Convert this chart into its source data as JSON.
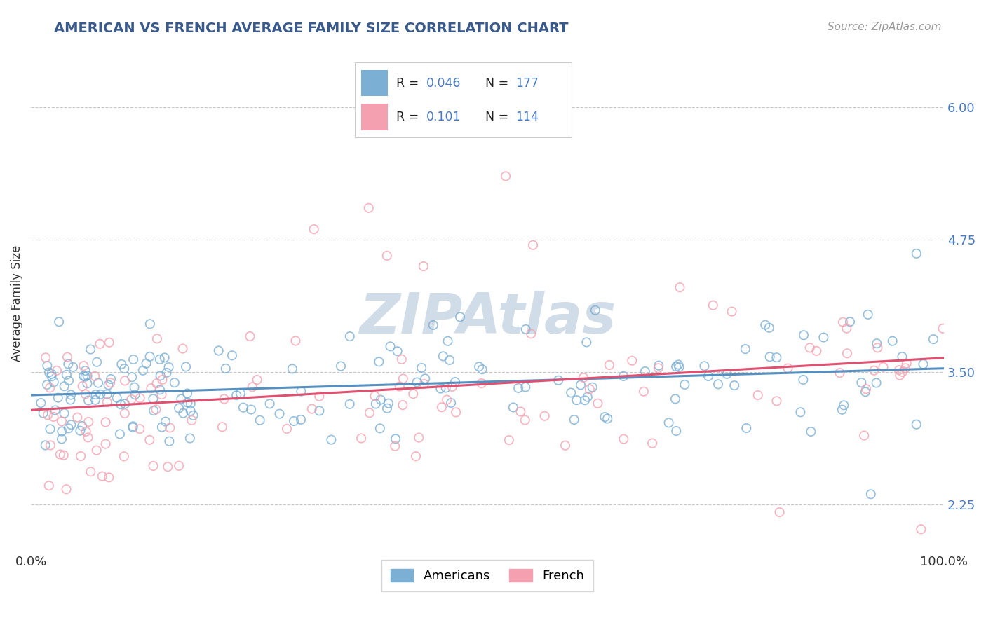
{
  "title": "AMERICAN VS FRENCH AVERAGE FAMILY SIZE CORRELATION CHART",
  "source": "Source: ZipAtlas.com",
  "ylabel": "Average Family Size",
  "xlim": [
    0.0,
    1.0
  ],
  "ylim": [
    1.8,
    6.5
  ],
  "yticks": [
    2.25,
    3.5,
    4.75,
    6.0
  ],
  "title_color": "#3a5a8c",
  "title_fontsize": 14,
  "american_color": "#7bafd4",
  "french_color": "#f4a0b0",
  "american_line_color": "#5590c0",
  "french_line_color": "#e05070",
  "ytick_color": "#4a7abf",
  "background_color": "#ffffff",
  "grid_color": "#c8c8c8",
  "legend_stat_color": "#4a7abf",
  "american_R": "0.046",
  "american_N": "177",
  "french_R": "0.101",
  "french_N": "114",
  "watermark_color": "#d0dde8",
  "seed_am": 42,
  "seed_fr": 77,
  "n_am": 177,
  "n_fr": 114
}
